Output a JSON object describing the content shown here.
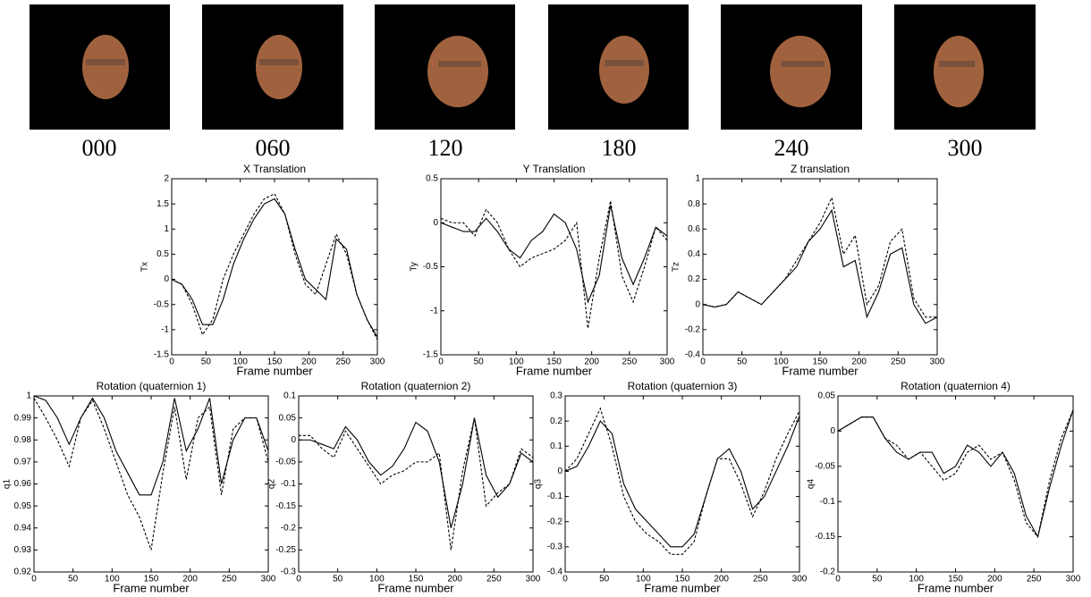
{
  "frame_labels": [
    "000",
    "060",
    "120",
    "180",
    "240",
    "300"
  ],
  "chart_data": [
    {
      "type": "line",
      "title": "X Translation",
      "xlabel": "Frame number",
      "ylabel": "Tx",
      "x": [
        0,
        15,
        30,
        45,
        60,
        75,
        90,
        105,
        120,
        135,
        150,
        165,
        180,
        195,
        210,
        225,
        240,
        255,
        270,
        285,
        300
      ],
      "series": [
        {
          "color": "#000000",
          "dash": false,
          "values": [
            0,
            -0.1,
            -0.4,
            -0.9,
            -0.9,
            -0.4,
            0.3,
            0.8,
            1.2,
            1.5,
            1.6,
            1.3,
            0.6,
            0.0,
            -0.2,
            -0.4,
            0.8,
            0.6,
            -0.3,
            -0.8,
            -1.15
          ]
        },
        {
          "color": "#000000",
          "dash": true,
          "values": [
            0,
            -0.1,
            -0.5,
            -1.1,
            -0.8,
            0.0,
            0.5,
            0.9,
            1.3,
            1.6,
            1.7,
            1.3,
            0.5,
            -0.1,
            -0.3,
            0.3,
            0.9,
            0.5,
            -0.3,
            -0.8,
            -1.2
          ]
        }
      ],
      "xlim": [
        0,
        300
      ],
      "xticks": [
        0,
        50,
        100,
        150,
        200,
        250,
        300
      ],
      "ylim": [
        -1.5,
        2
      ],
      "yticks": [
        -1.5,
        -1,
        -0.5,
        0,
        0.5,
        1,
        1.5,
        2
      ]
    },
    {
      "type": "line",
      "title": "Y Translation",
      "xlabel": "Frame number",
      "ylabel": "Ty",
      "x": [
        0,
        15,
        30,
        45,
        60,
        75,
        90,
        105,
        120,
        135,
        150,
        165,
        180,
        195,
        210,
        225,
        240,
        255,
        270,
        285,
        300
      ],
      "series": [
        {
          "color": "#000000",
          "dash": false,
          "values": [
            0,
            -0.05,
            -0.1,
            -0.1,
            0.05,
            -0.1,
            -0.3,
            -0.4,
            -0.2,
            -0.1,
            0.1,
            0.0,
            -0.3,
            -0.9,
            -0.6,
            0.2,
            -0.4,
            -0.7,
            -0.4,
            -0.05,
            -0.15
          ]
        },
        {
          "color": "#000000",
          "dash": true,
          "values": [
            0.05,
            0,
            0.0,
            -0.15,
            0.15,
            0.0,
            -0.3,
            -0.5,
            -0.4,
            -0.35,
            -0.3,
            -0.2,
            0.0,
            -1.2,
            -0.4,
            0.25,
            -0.6,
            -0.9,
            -0.5,
            -0.05,
            -0.2
          ]
        }
      ],
      "xlim": [
        0,
        300
      ],
      "xticks": [
        0,
        50,
        100,
        150,
        200,
        250,
        300
      ],
      "ylim": [
        -1.5,
        0.5
      ],
      "yticks": [
        -1.5,
        -1,
        -0.5,
        0,
        0.5
      ]
    },
    {
      "type": "line",
      "title": "Z translation",
      "xlabel": "Frame number",
      "ylabel": "Tz",
      "x": [
        0,
        15,
        30,
        45,
        60,
        75,
        90,
        105,
        120,
        135,
        150,
        165,
        180,
        195,
        210,
        225,
        240,
        255,
        270,
        285,
        300
      ],
      "series": [
        {
          "color": "#000000",
          "dash": false,
          "values": [
            0,
            -0.02,
            0.0,
            0.1,
            0.05,
            0.0,
            0.1,
            0.2,
            0.3,
            0.5,
            0.6,
            0.75,
            0.3,
            0.35,
            -0.1,
            0.1,
            0.4,
            0.45,
            0.0,
            -0.15,
            -0.1
          ]
        },
        {
          "color": "#000000",
          "dash": true,
          "values": [
            0,
            -0.02,
            0.0,
            0.1,
            0.05,
            0.0,
            0.1,
            0.2,
            0.35,
            0.5,
            0.65,
            0.85,
            0.4,
            0.55,
            0.0,
            0.15,
            0.5,
            0.6,
            0.05,
            -0.1,
            -0.1
          ]
        }
      ],
      "xlim": [
        0,
        300
      ],
      "xticks": [
        0,
        50,
        100,
        150,
        200,
        250,
        300
      ],
      "ylim": [
        -0.4,
        1
      ],
      "yticks": [
        -0.4,
        -0.2,
        0,
        0.2,
        0.4,
        0.6,
        0.8,
        1
      ]
    },
    {
      "type": "line",
      "title": "Rotation (quaternion 1)",
      "xlabel": "Frame number",
      "ylabel": "q1",
      "x": [
        0,
        15,
        30,
        45,
        60,
        75,
        90,
        105,
        120,
        135,
        150,
        165,
        180,
        195,
        210,
        225,
        240,
        255,
        270,
        285,
        300
      ],
      "series": [
        {
          "color": "#000000",
          "dash": false,
          "values": [
            1.0,
            0.998,
            0.99,
            0.978,
            0.99,
            0.999,
            0.99,
            0.975,
            0.965,
            0.955,
            0.955,
            0.97,
            0.999,
            0.975,
            0.985,
            0.999,
            0.96,
            0.98,
            0.99,
            0.99,
            0.975
          ]
        },
        {
          "color": "#000000",
          "dash": true,
          "values": [
            0.999,
            0.99,
            0.98,
            0.968,
            0.99,
            0.998,
            0.985,
            0.97,
            0.955,
            0.945,
            0.93,
            0.965,
            0.995,
            0.962,
            0.99,
            0.995,
            0.955,
            0.985,
            0.99,
            0.99,
            0.97
          ]
        }
      ],
      "xlim": [
        0,
        300
      ],
      "xticks": [
        0,
        50,
        100,
        150,
        200,
        250,
        300
      ],
      "ylim": [
        0.92,
        1
      ],
      "yticks": [
        0.92,
        0.93,
        0.94,
        0.95,
        0.96,
        0.97,
        0.98,
        0.99,
        1
      ]
    },
    {
      "type": "line",
      "title": "Rotation (quaternion 2)",
      "xlabel": "Frame number",
      "ylabel": "q2",
      "x": [
        0,
        15,
        30,
        45,
        60,
        75,
        90,
        105,
        120,
        135,
        150,
        165,
        180,
        195,
        210,
        225,
        240,
        255,
        270,
        285,
        300
      ],
      "series": [
        {
          "color": "#000000",
          "dash": false,
          "values": [
            0,
            0,
            -0.01,
            -0.02,
            0.03,
            0.0,
            -0.05,
            -0.08,
            -0.06,
            -0.02,
            0.04,
            0.02,
            -0.05,
            -0.2,
            -0.1,
            0.05,
            -0.08,
            -0.13,
            -0.1,
            -0.03,
            -0.05
          ]
        },
        {
          "color": "#000000",
          "dash": true,
          "values": [
            0.01,
            0.01,
            -0.02,
            -0.04,
            0.02,
            -0.02,
            -0.06,
            -0.1,
            -0.08,
            -0.07,
            -0.05,
            -0.05,
            -0.03,
            -0.25,
            -0.07,
            0.05,
            -0.15,
            -0.12,
            -0.1,
            -0.02,
            -0.04
          ]
        }
      ],
      "xlim": [
        0,
        300
      ],
      "xticks": [
        0,
        50,
        100,
        150,
        200,
        250,
        300
      ],
      "ylim": [
        -0.3,
        0.1
      ],
      "yticks": [
        -0.3,
        -0.25,
        -0.2,
        -0.15,
        -0.1,
        -0.05,
        0,
        0.05,
        0.1
      ]
    },
    {
      "type": "line",
      "title": "Rotation (quaternion 3)",
      "xlabel": "Frame number",
      "ylabel": "q3",
      "x": [
        0,
        15,
        30,
        45,
        60,
        75,
        90,
        105,
        120,
        135,
        150,
        165,
        180,
        195,
        210,
        225,
        240,
        255,
        270,
        285,
        300
      ],
      "series": [
        {
          "color": "#000000",
          "dash": false,
          "values": [
            0,
            0.02,
            0.1,
            0.2,
            0.15,
            -0.05,
            -0.15,
            -0.2,
            -0.25,
            -0.3,
            -0.3,
            -0.25,
            -0.1,
            0.05,
            0.09,
            0.0,
            -0.15,
            -0.1,
            0.0,
            0.1,
            0.22
          ]
        },
        {
          "color": "#000000",
          "dash": true,
          "values": [
            0,
            0.05,
            0.15,
            0.25,
            0.1,
            -0.1,
            -0.2,
            -0.25,
            -0.28,
            -0.33,
            -0.33,
            -0.28,
            -0.1,
            0.05,
            0.05,
            -0.05,
            -0.18,
            -0.08,
            0.05,
            0.15,
            0.24
          ]
        }
      ],
      "xlim": [
        0,
        300
      ],
      "xticks": [
        0,
        50,
        100,
        150,
        200,
        250,
        300
      ],
      "ylim": [
        -0.4,
        0.3
      ],
      "yticks": [
        -0.4,
        -0.3,
        -0.2,
        -0.1,
        0,
        0.1,
        0.2,
        0.3
      ]
    },
    {
      "type": "line",
      "title": "Rotation (quaternion 4)",
      "xlabel": "Frame number",
      "ylabel": "q4",
      "x": [
        0,
        15,
        30,
        45,
        60,
        75,
        90,
        105,
        120,
        135,
        150,
        165,
        180,
        195,
        210,
        225,
        240,
        255,
        270,
        285,
        300
      ],
      "series": [
        {
          "color": "#000000",
          "dash": false,
          "values": [
            0,
            0.01,
            0.02,
            0.02,
            -0.01,
            -0.03,
            -0.04,
            -0.03,
            -0.03,
            -0.06,
            -0.05,
            -0.02,
            -0.03,
            -0.05,
            -0.03,
            -0.06,
            -0.12,
            -0.15,
            -0.08,
            -0.02,
            0.03
          ]
        },
        {
          "color": "#000000",
          "dash": true,
          "values": [
            0,
            0.01,
            0.02,
            0.02,
            -0.01,
            -0.02,
            -0.04,
            -0.03,
            -0.05,
            -0.07,
            -0.06,
            -0.03,
            -0.02,
            -0.04,
            -0.03,
            -0.07,
            -0.13,
            -0.15,
            -0.07,
            -0.01,
            0.03
          ]
        }
      ],
      "xlim": [
        0,
        300
      ],
      "xticks": [
        0,
        50,
        100,
        150,
        200,
        250,
        300
      ],
      "ylim": [
        -0.2,
        0.05
      ],
      "yticks": [
        -0.2,
        -0.15,
        -0.1,
        -0.05,
        0,
        0.05
      ]
    }
  ]
}
